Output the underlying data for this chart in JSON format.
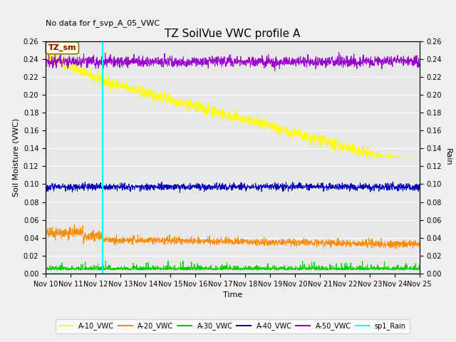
{
  "title": "TZ SoilVue VWC profile A",
  "no_data_text": "No data for f_svp_A_05_VWC",
  "xlabel": "Time",
  "ylabel_left": "Soil Moisture (VWC)",
  "ylabel_right": "Rain",
  "ylim": [
    0.0,
    0.26
  ],
  "x_ticks": [
    10,
    11,
    12,
    13,
    14,
    15,
    16,
    17,
    18,
    19,
    20,
    21,
    22,
    23,
    24,
    25
  ],
  "x_tick_labels": [
    "Nov 10",
    "Nov 11",
    "Nov 12",
    "Nov 13",
    "Nov 14",
    "Nov 15",
    "Nov 16",
    "Nov 17",
    "Nov 18",
    "Nov 19",
    "Nov 20",
    "Nov 21",
    "Nov 22",
    "Nov 23",
    "Nov 24",
    "Nov 25"
  ],
  "vline_day": 12.3,
  "vline_color": "cyan",
  "colors": {
    "A10": "#ffff00",
    "A20": "#ff8c00",
    "A30": "#00cc00",
    "A40": "#0000bb",
    "A50": "#9900cc",
    "Rain": "cyan"
  },
  "legend_labels": [
    "A-10_VWC",
    "A-20_VWC",
    "A-30_VWC",
    "A-40_VWC",
    "A-50_VWC",
    "sp1_Rain"
  ],
  "annotation_text": "TZ_sm",
  "bg_color": "#e8e8e8",
  "grid_color": "white",
  "fig_bg": "#f0f0f0"
}
